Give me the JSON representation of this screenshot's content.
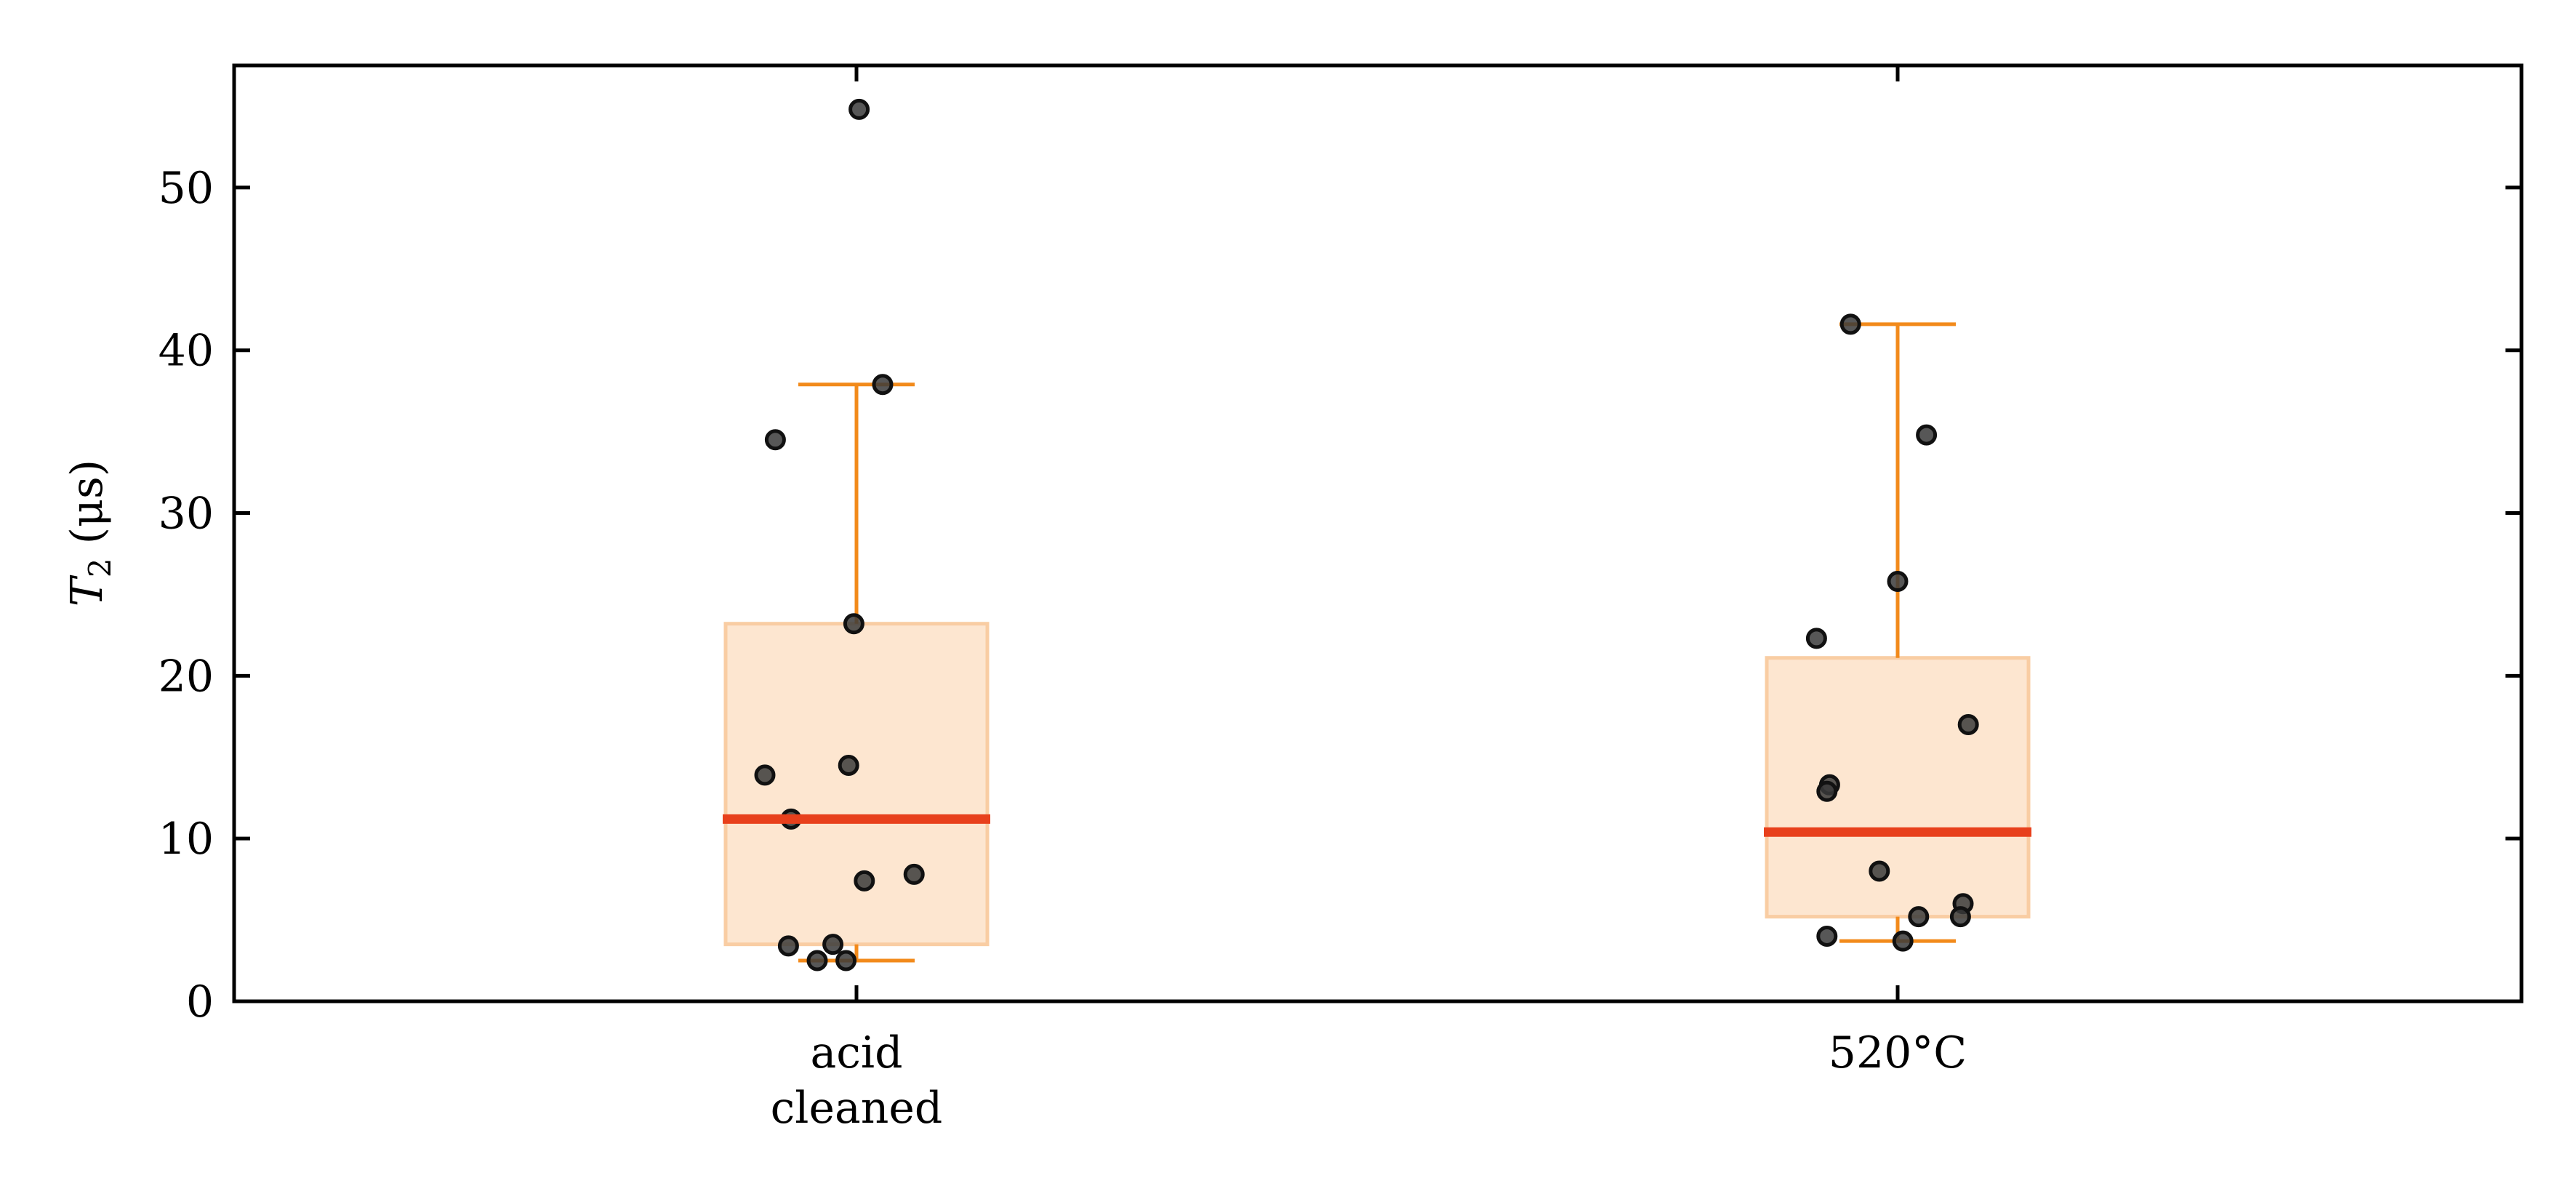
{
  "chart_data": {
    "type": "box",
    "ylabel_main": "T",
    "ylabel_sub": "2",
    "ylabel_unit": "(μs)",
    "ylim": [
      0,
      57.5
    ],
    "yticks": [
      0,
      10,
      20,
      30,
      40,
      50
    ],
    "categories": [
      {
        "lines": [
          "acid",
          "cleaned"
        ]
      },
      {
        "lines": [
          "520°C"
        ]
      }
    ],
    "boxes": [
      {
        "q1": 3.5,
        "median": 11.2,
        "q3": 23.2,
        "whisker_low": 2.5,
        "whisker_high": 37.9
      },
      {
        "q1": 5.2,
        "median": 10.4,
        "q3": 21.1,
        "whisker_low": 3.7,
        "whisker_high": 41.6
      }
    ],
    "points": [
      [
        {
          "offset": 0.01,
          "y": 54.8
        },
        {
          "offset": 0.1,
          "y": 37.9
        },
        {
          "offset": -0.31,
          "y": 34.5
        },
        {
          "offset": -0.01,
          "y": 23.2
        },
        {
          "offset": -0.03,
          "y": 14.5
        },
        {
          "offset": -0.35,
          "y": 13.9
        },
        {
          "offset": -0.25,
          "y": 11.2
        },
        {
          "offset": 0.22,
          "y": 7.8
        },
        {
          "offset": 0.03,
          "y": 7.4
        },
        {
          "offset": -0.26,
          "y": 3.4
        },
        {
          "offset": -0.09,
          "y": 3.5
        },
        {
          "offset": -0.15,
          "y": 2.5
        },
        {
          "offset": -0.04,
          "y": 2.5
        }
      ],
      [
        {
          "offset": -0.18,
          "y": 41.6
        },
        {
          "offset": 0.11,
          "y": 34.8
        },
        {
          "offset": 0.0,
          "y": 25.8
        },
        {
          "offset": -0.31,
          "y": 22.3
        },
        {
          "offset": 0.27,
          "y": 17.0
        },
        {
          "offset": -0.26,
          "y": 13.3
        },
        {
          "offset": -0.27,
          "y": 12.9
        },
        {
          "offset": -0.07,
          "y": 8.0
        },
        {
          "offset": 0.25,
          "y": 6.0
        },
        {
          "offset": 0.08,
          "y": 5.2
        },
        {
          "offset": 0.24,
          "y": 5.2
        },
        {
          "offset": -0.27,
          "y": 4.0
        },
        {
          "offset": 0.02,
          "y": 3.7
        }
      ]
    ],
    "colors": {
      "box_fill": "#fde6d0",
      "box_edge": "#f9cda3",
      "whisker": "#f28a1b",
      "median": "#e8401c",
      "point_fill": "#3a3a3a",
      "point_edge": "#111111"
    }
  }
}
